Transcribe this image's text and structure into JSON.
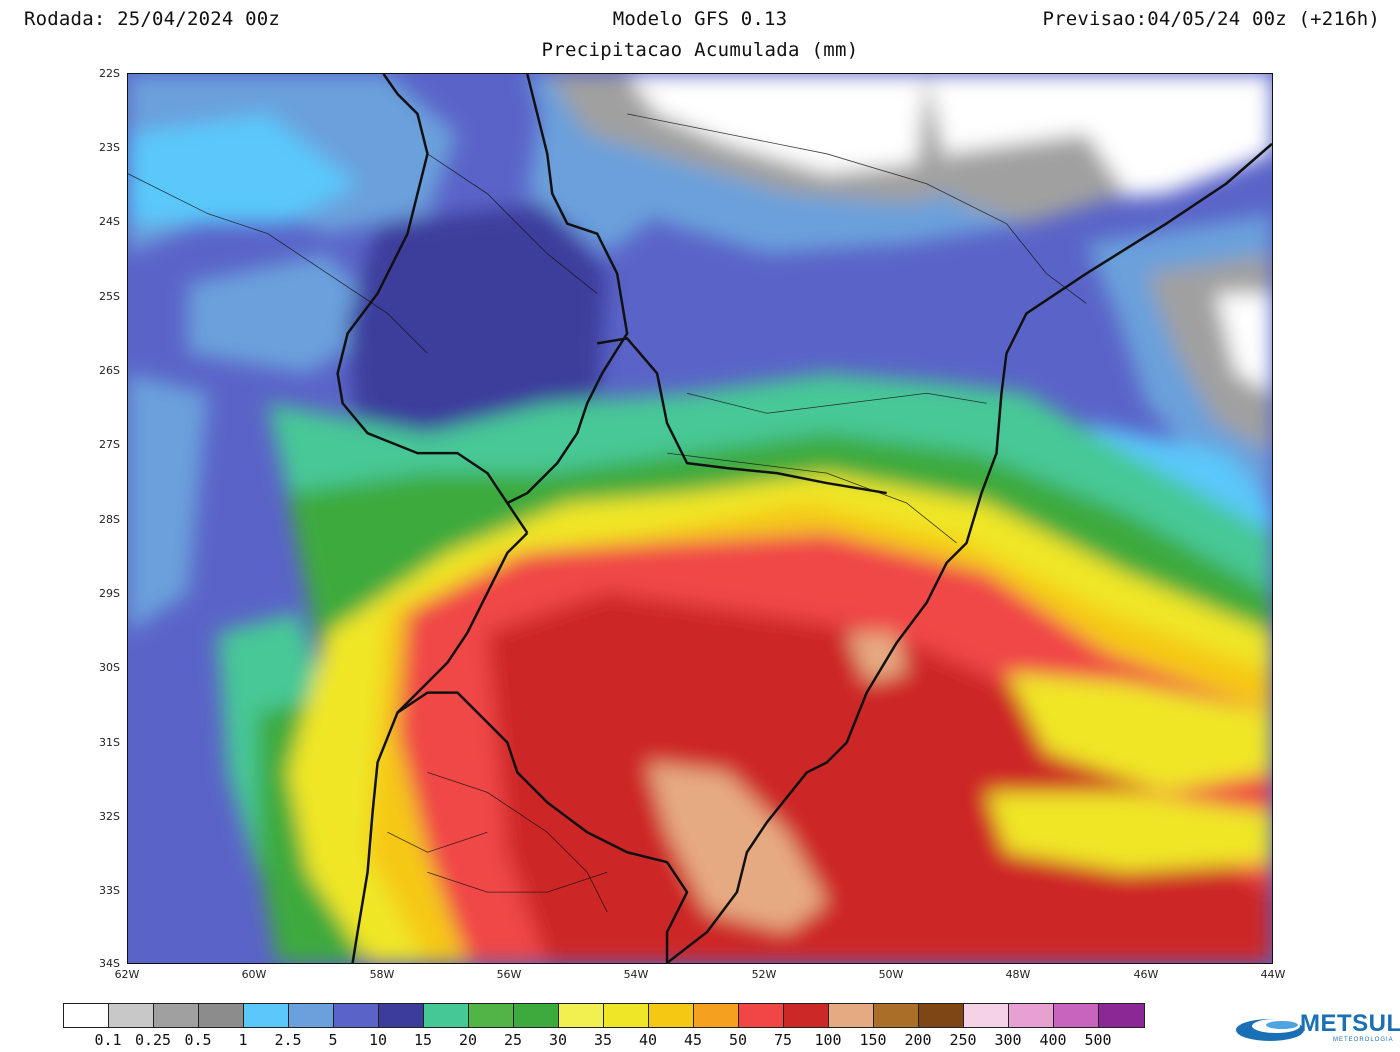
{
  "header": {
    "run": "Rodada: 25/04/2024 00z",
    "model": "Modelo GFS 0.13",
    "forecast": "Previsao:04/05/24 00z (+216h)",
    "subtitle": "Precipitacao Acumulada (mm)"
  },
  "map": {
    "lat_ticks": [
      "22S",
      "23S",
      "24S",
      "25S",
      "26S",
      "27S",
      "28S",
      "29S",
      "30S",
      "31S",
      "32S",
      "33S",
      "34S"
    ],
    "lon_ticks": [
      "62W",
      "60W",
      "58W",
      "56W",
      "54W",
      "52W",
      "50W",
      "48W",
      "46W",
      "44W"
    ],
    "lat_range": [
      -34,
      -22
    ],
    "lon_range": [
      -62,
      -44
    ]
  },
  "legend": {
    "colors": [
      "#ffffff",
      "#c8c8c8",
      "#a0a0a0",
      "#8c8c8c",
      "#5ac8fa",
      "#6aa0dc",
      "#5a64c8",
      "#3c3c9c",
      "#46c896",
      "#50b446",
      "#3caa3c",
      "#f0f050",
      "#f0e628",
      "#f5c814",
      "#f5a01e",
      "#f04646",
      "#cd2828",
      "#e6aa82",
      "#aa6e28",
      "#7d4614",
      "#f5d2e6",
      "#e6a0d2",
      "#c864be",
      "#8c2896"
    ],
    "labels": [
      "0.1",
      "0.25",
      "0.5",
      "1",
      "2.5",
      "5",
      "10",
      "15",
      "20",
      "25",
      "30",
      "35",
      "40",
      "45",
      "50",
      "75",
      "100",
      "150",
      "200",
      "250",
      "300",
      "400",
      "500"
    ]
  },
  "logo": {
    "name": "METSUL",
    "sub": "METEOROLOGIA"
  }
}
